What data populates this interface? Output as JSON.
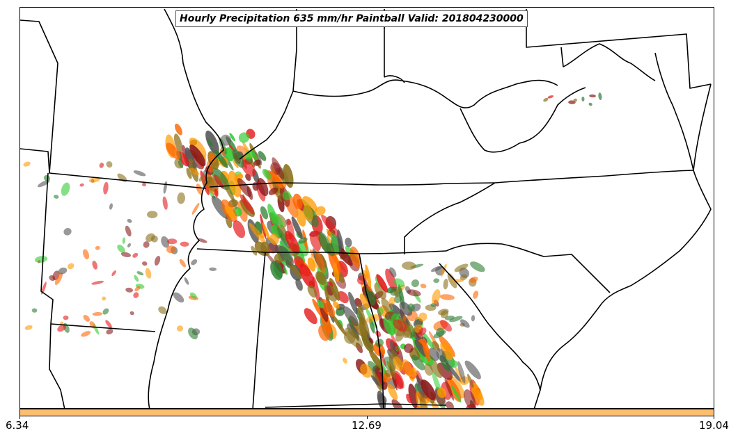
{
  "title": "Hourly Precipitation 635 mm/hr Paintball Valid: 201804230000",
  "colorbar": {
    "color": "#fdbf6f",
    "ticks": [
      "6.34",
      "12.69",
      "19.04"
    ]
  },
  "paintball_colors": [
    "#ff9900",
    "#ff6600",
    "#e41a1c",
    "#33cc33",
    "#2e7d32",
    "#8b6f1a",
    "#8b1a1a",
    "#555555"
  ]
}
